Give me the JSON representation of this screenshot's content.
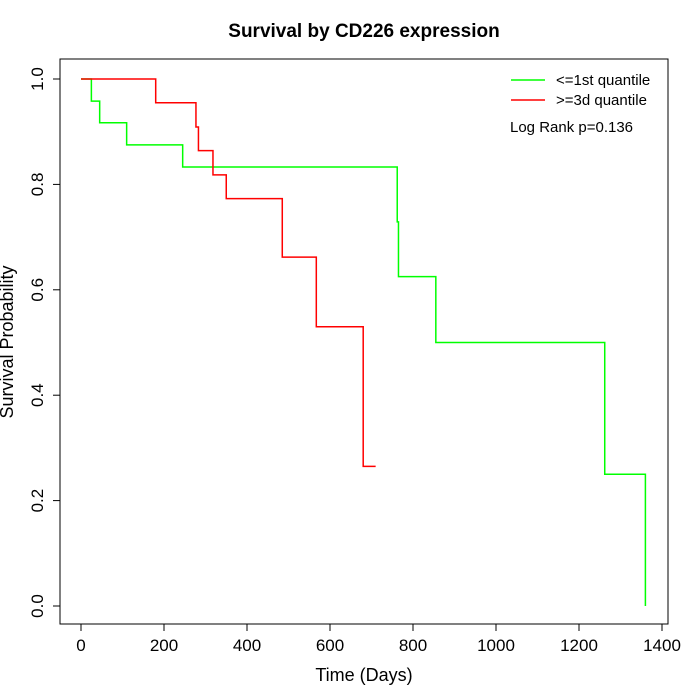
{
  "chart_data": {
    "type": "line",
    "title": "Survival by CD226 expression",
    "xlabel": "Time (Days)",
    "ylabel": "Survival Probability",
    "xlim": [
      0,
      1400
    ],
    "ylim": [
      0,
      1.0
    ],
    "x_ticks": [
      "0",
      "200",
      "400",
      "600",
      "800",
      "1000",
      "1200",
      "1400"
    ],
    "y_ticks": [
      "0.0",
      "0.2",
      "0.4",
      "0.6",
      "0.8",
      "1.0"
    ],
    "legend_position": "top-right",
    "annotation": "Log Rank p=0.136",
    "series": [
      {
        "name": "<=1st quantile",
        "color": "#00ff00",
        "step": true,
        "x": [
          0,
          25,
          45,
          110,
          245,
          762,
          765,
          855,
          1262,
          1360
        ],
        "y": [
          1.0,
          0.958,
          0.917,
          0.875,
          0.833,
          0.729,
          0.625,
          0.5,
          0.25,
          0.0
        ]
      },
      {
        "name": ">=3d quantile",
        "color": "#ff0000",
        "step": true,
        "x": [
          0,
          180,
          277,
          283,
          318,
          350,
          485,
          567,
          680,
          710
        ],
        "y": [
          1.0,
          0.955,
          0.909,
          0.864,
          0.818,
          0.773,
          0.662,
          0.53,
          0.265,
          0.265
        ]
      }
    ]
  }
}
